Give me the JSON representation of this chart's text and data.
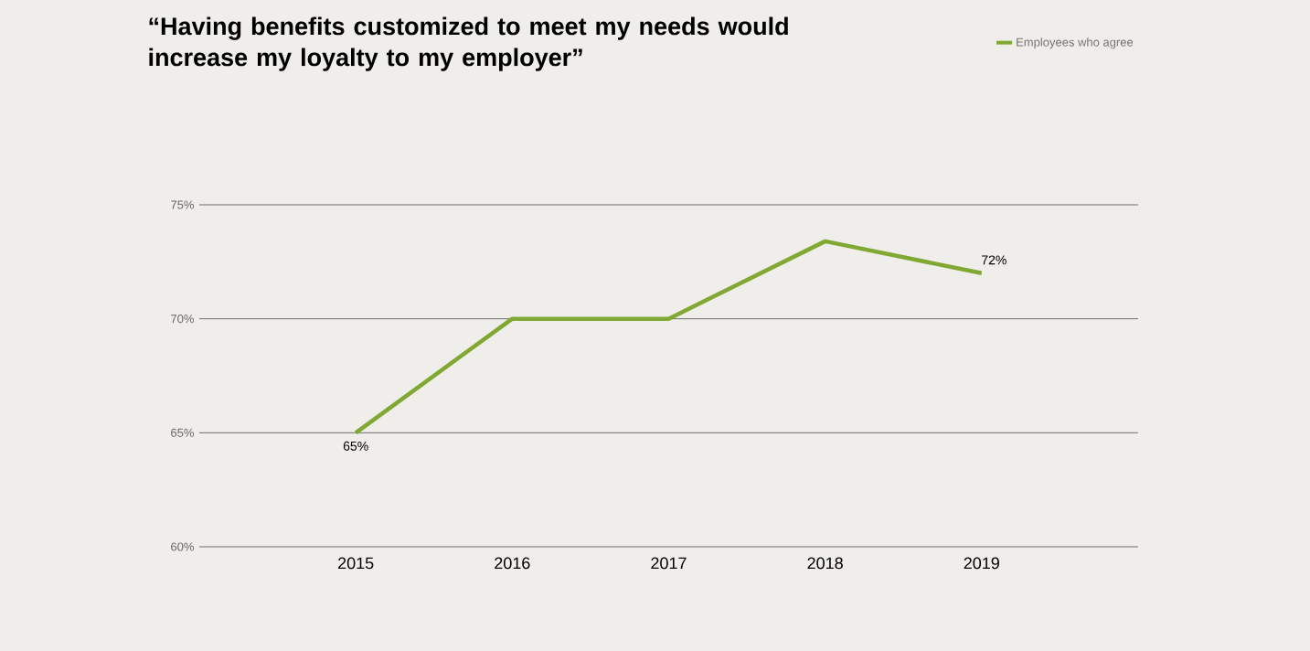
{
  "chart_data": {
    "type": "line",
    "title": "“Having benefits customized to meet my needs would increase my loyalty to my employer”",
    "categories": [
      "2015",
      "2016",
      "2017",
      "2018",
      "2019"
    ],
    "series": [
      {
        "name": "Employees who agree",
        "color": "#80a833",
        "values": [
          65,
          70,
          70,
          73.4,
          72
        ],
        "value_labels": [
          "65%",
          null,
          null,
          null,
          "72%"
        ]
      }
    ],
    "ylim": [
      60,
      75
    ],
    "yticks": [
      {
        "value": 60,
        "label": "60%"
      },
      {
        "value": 65,
        "label": "65%"
      },
      {
        "value": 70,
        "label": "70%"
      },
      {
        "value": 75,
        "label": "75%"
      }
    ],
    "grid": "y",
    "legend": "top right",
    "marker": "none",
    "line_style": "solid"
  }
}
